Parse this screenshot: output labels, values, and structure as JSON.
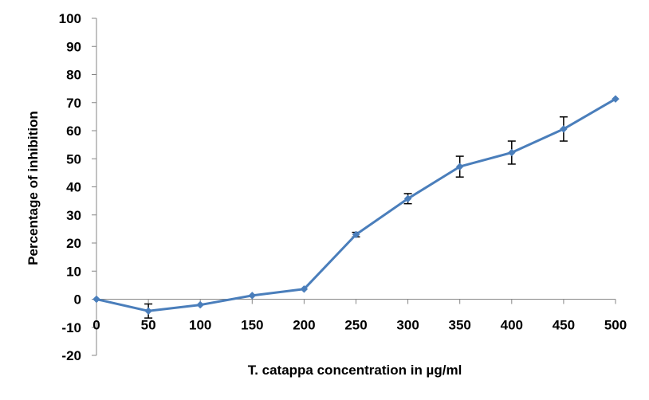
{
  "chart_data": {
    "type": "line",
    "title": "",
    "xlabel": "T. catappa concentration in µg/ml",
    "ylabel": "Percentage of inhibition",
    "x": [
      0,
      50,
      100,
      150,
      200,
      250,
      300,
      350,
      400,
      450,
      500
    ],
    "x_tick_labels": [
      "0",
      "50",
      "100",
      "150",
      "200",
      "250",
      "300",
      "350",
      "400",
      "450",
      "500"
    ],
    "y_tick_labels": [
      "100",
      "90",
      "80",
      "70",
      "60",
      "50",
      "40",
      "30",
      "20",
      "10",
      "0",
      "-10",
      "-20"
    ],
    "xlim": [
      0,
      500
    ],
    "ylim": [
      -20,
      100
    ],
    "grid": false,
    "legend": "none",
    "series": [
      {
        "values": [
          0,
          -4.2,
          -2,
          1.3,
          3.6,
          23,
          35.8,
          47.2,
          52.2,
          60.6,
          71.3
        ],
        "error": [
          null,
          2.5,
          null,
          null,
          null,
          0.8,
          1.8,
          3.7,
          4.1,
          4.3,
          null
        ],
        "color": "#4a7ebb",
        "marker": "diamond"
      }
    ]
  }
}
